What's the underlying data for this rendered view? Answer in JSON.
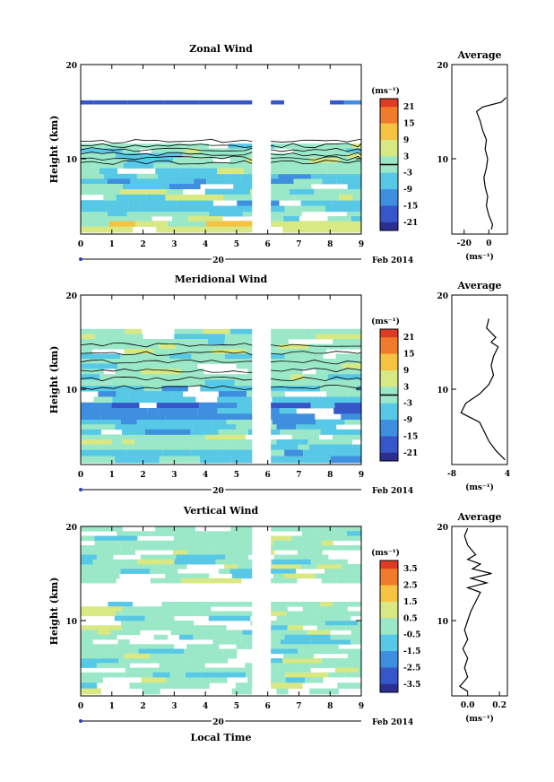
{
  "chart_data": [
    {
      "type": "heatmap",
      "title": "Zonal Wind",
      "ylabel": "Height (km)",
      "xticks": [
        "0",
        "1",
        "2",
        "3",
        "4",
        "5",
        "6",
        "7",
        "8",
        "9"
      ],
      "yticks": [
        "20",
        "10"
      ],
      "xlim": [
        0,
        9
      ],
      "ylim": [
        2,
        20
      ],
      "date_label": "20",
      "month_label": "Feb 2014",
      "data_gap": [
        5.5,
        6.1
      ],
      "colorbar": {
        "unit": "(ms⁻¹)",
        "ticks": [
          "21",
          "15",
          "9",
          "3",
          "-3",
          "-9",
          "-15",
          "-21"
        ],
        "range": [
          -24,
          24
        ],
        "zero_line": true
      },
      "layers": [
        {
          "y0": 2.2,
          "y1": 3.4,
          "level": 5
        },
        {
          "y0": 3.4,
          "y1": 4.4,
          "level": 4
        },
        {
          "y0": 4.4,
          "y1": 5.6,
          "level": 3
        },
        {
          "y0": 5.6,
          "y1": 6.8,
          "level": 4
        },
        {
          "y0": 6.8,
          "y1": 8.4,
          "level": 3
        },
        {
          "y0": 8.4,
          "y1": 9.6,
          "level": 4
        },
        {
          "y0": 9.6,
          "y1": 11.6,
          "level": 4
        },
        {
          "y0": 15.8,
          "y1": 16.2,
          "level": 1
        }
      ],
      "average": {
        "title": "Average",
        "xticks": [
          "-20",
          "0"
        ],
        "xlim": [
          -30,
          15
        ],
        "unit": "(ms⁻¹)",
        "yticks": [
          "20",
          "10"
        ],
        "profile": [
          [
            2.5,
            2
          ],
          [
            3,
            3
          ],
          [
            4,
            0
          ],
          [
            5,
            -2
          ],
          [
            6,
            -1
          ],
          [
            7,
            -3
          ],
          [
            8,
            -4
          ],
          [
            9,
            -2
          ],
          [
            10,
            -1
          ],
          [
            11,
            -3
          ],
          [
            12,
            -2
          ],
          [
            13,
            -5
          ],
          [
            14,
            -7
          ],
          [
            15,
            -10
          ],
          [
            15.5,
            -5
          ],
          [
            16,
            10
          ],
          [
            16.5,
            14
          ]
        ]
      }
    },
    {
      "type": "heatmap",
      "title": "Meridional Wind",
      "ylabel": "Height (km)",
      "xticks": [
        "0",
        "1",
        "2",
        "3",
        "4",
        "5",
        "6",
        "7",
        "8",
        "9"
      ],
      "yticks": [
        "20",
        "10"
      ],
      "xlim": [
        0,
        9
      ],
      "ylim": [
        2,
        20
      ],
      "date_label": "20",
      "month_label": "Feb 2014",
      "data_gap": [
        5.5,
        6.1
      ],
      "colorbar": {
        "unit": "(ms⁻¹)",
        "ticks": [
          "21",
          "15",
          "9",
          "3",
          "-3",
          "-9",
          "-15",
          "-21"
        ],
        "range": [
          -24,
          24
        ],
        "zero_line": true
      },
      "layers": [
        {
          "y0": 2.2,
          "y1": 3.6,
          "level": 3
        },
        {
          "y0": 3.6,
          "y1": 5.2,
          "level": 4
        },
        {
          "y0": 5.2,
          "y1": 6.8,
          "level": 3
        },
        {
          "y0": 6.8,
          "y1": 8.6,
          "level": 2
        },
        {
          "y0": 8.6,
          "y1": 10.4,
          "level": 3
        },
        {
          "y0": 10.4,
          "y1": 12.2,
          "level": 4
        },
        {
          "y0": 12.2,
          "y1": 14.8,
          "level": 4
        },
        {
          "y0": 14.8,
          "y1": 16.4,
          "level": 4
        }
      ],
      "average": {
        "title": "Average",
        "xticks": [
          "-8",
          "4"
        ],
        "xlim": [
          -8,
          4
        ],
        "unit": "(ms⁻¹)",
        "yticks": [
          "20",
          "10"
        ],
        "profile": [
          [
            2.5,
            3.5
          ],
          [
            3.5,
            1.5
          ],
          [
            4.5,
            0
          ],
          [
            5.5,
            -1
          ],
          [
            6.5,
            -2
          ],
          [
            7.5,
            -6
          ],
          [
            8.5,
            -5
          ],
          [
            9.5,
            -2
          ],
          [
            10.5,
            0
          ],
          [
            11.5,
            1
          ],
          [
            12.5,
            0.5
          ],
          [
            13.5,
            1
          ],
          [
            14.5,
            2
          ],
          [
            15,
            0.5
          ],
          [
            15.5,
            1.5
          ],
          [
            16.5,
            -0.5
          ],
          [
            17.5,
            0
          ]
        ]
      }
    },
    {
      "type": "heatmap",
      "title": "Vertical Wind",
      "ylabel": "Height (km)",
      "xlabel": "Local Time",
      "xticks": [
        "0",
        "1",
        "2",
        "3",
        "4",
        "5",
        "6",
        "7",
        "8",
        "9"
      ],
      "yticks": [
        "20",
        "10"
      ],
      "xlim": [
        0,
        9
      ],
      "ylim": [
        2,
        20
      ],
      "date_label": "20",
      "month_label": "Feb 2014",
      "data_gap": [
        5.5,
        6.1
      ],
      "colorbar": {
        "unit": "(ms⁻¹)",
        "ticks": [
          "3.5",
          "2.5",
          "1.5",
          "0.5",
          "-0.5",
          "-1.5",
          "-2.5",
          "-3.5"
        ],
        "range": [
          -4,
          4
        ],
        "zero_line": false
      },
      "layers": [
        {
          "y0": 2.2,
          "y1": 4.0,
          "level": 4
        },
        {
          "y0": 4.0,
          "y1": 6.0,
          "level": 4
        },
        {
          "y0": 6.0,
          "y1": 8.0,
          "level": 4
        },
        {
          "y0": 8.0,
          "y1": 10.0,
          "level": 4
        },
        {
          "y0": 10.0,
          "y1": 12.0,
          "level": 4
        },
        {
          "y0": 14.0,
          "y1": 16.0,
          "level": 4
        },
        {
          "y0": 16.0,
          "y1": 18.0,
          "level": 4
        },
        {
          "y0": 18.0,
          "y1": 20.0,
          "level": 4
        }
      ],
      "average": {
        "title": "Average",
        "xticks": [
          "0.0",
          "0.2"
        ],
        "xlim": [
          -0.1,
          0.25
        ],
        "unit": "(ms⁻¹)",
        "yticks": [
          "20",
          "10"
        ],
        "profile": [
          [
            2.5,
            0.0
          ],
          [
            3,
            -0.05
          ],
          [
            4,
            0.0
          ],
          [
            5,
            -0.02
          ],
          [
            6,
            0.0
          ],
          [
            7,
            -0.03
          ],
          [
            8,
            0.0
          ],
          [
            9,
            -0.02
          ],
          [
            10,
            0.0
          ],
          [
            11,
            0.02
          ],
          [
            12,
            0.05
          ],
          [
            13,
            0.08
          ],
          [
            13.5,
            0.0
          ],
          [
            14,
            0.12
          ],
          [
            14.5,
            0.02
          ],
          [
            15,
            0.15
          ],
          [
            15.5,
            0.03
          ],
          [
            16,
            0.08
          ],
          [
            16.5,
            0.0
          ],
          [
            17,
            0.05
          ],
          [
            18,
            0.0
          ],
          [
            19,
            -0.02
          ],
          [
            19.8,
            0.0
          ]
        ]
      }
    }
  ],
  "palette": [
    "#2b2f8f",
    "#3557c9",
    "#3f8fe0",
    "#57c8e6",
    "#9be8c9",
    "#d8e882",
    "#f5c242",
    "#f07b2a",
    "#e03b24"
  ]
}
